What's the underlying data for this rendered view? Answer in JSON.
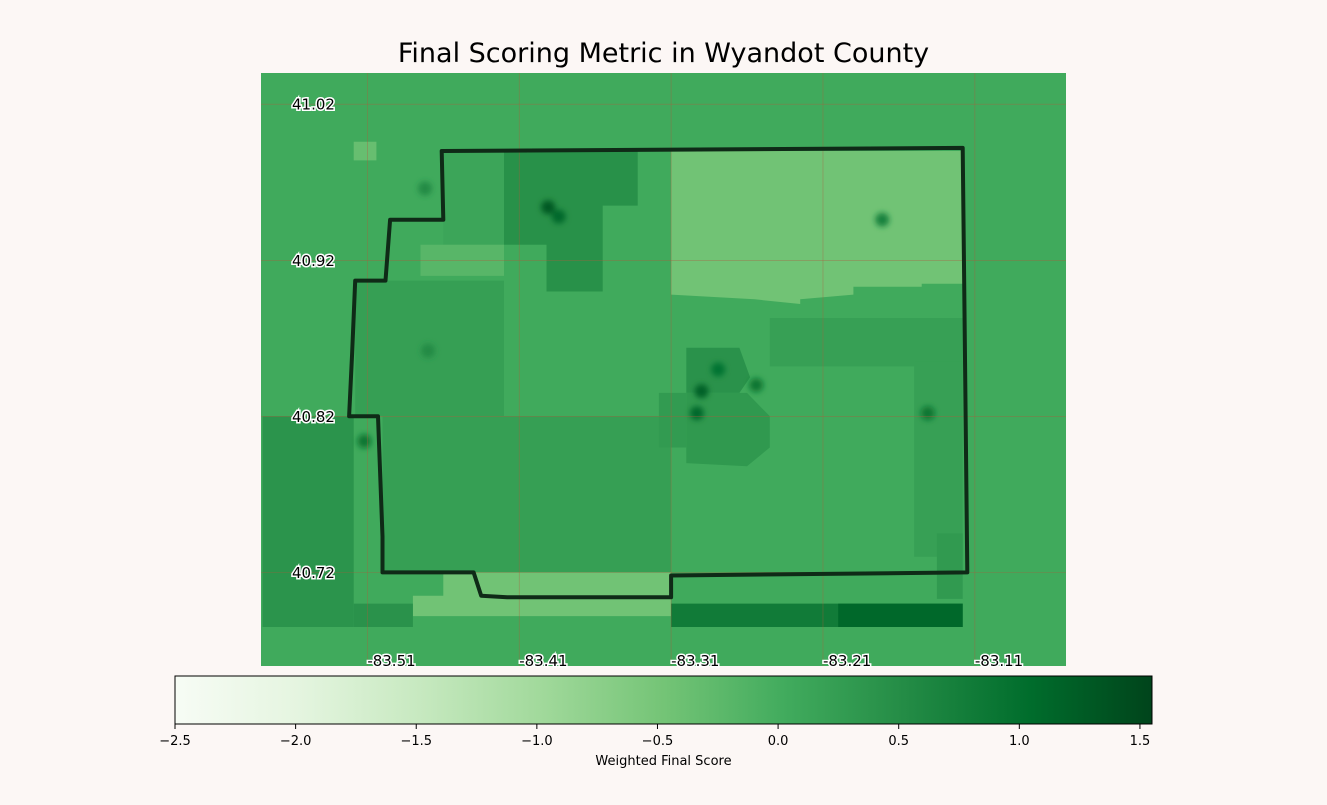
{
  "title": "Final Scoring Metric in Wyandot County",
  "colormap": {
    "name": "Greens",
    "stops": [
      "#f7fcf5",
      "#e5f5e0",
      "#c7e9c0",
      "#a1d99b",
      "#74c476",
      "#41ab5d",
      "#238b45",
      "#006d2c",
      "#00441b"
    ]
  },
  "colors": {
    "background": "#fcf7f5",
    "county_outline": "#0f2a17",
    "gridline": "#b05a3c"
  },
  "map": {
    "lon_range": [
      -83.58,
      -83.05
    ],
    "lat_range": [
      40.66,
      41.04
    ],
    "lat_ticks": [
      {
        "value": 41.02,
        "label": "41.02"
      },
      {
        "value": 40.92,
        "label": "40.92"
      },
      {
        "value": 40.82,
        "label": "40.82"
      },
      {
        "value": 40.72,
        "label": "40.72"
      }
    ],
    "lon_ticks": [
      {
        "value": -83.51,
        "label": "-83.51"
      },
      {
        "value": -83.41,
        "label": "-83.41"
      },
      {
        "value": -83.31,
        "label": "-83.31"
      },
      {
        "value": -83.21,
        "label": "-83.21"
      },
      {
        "value": -83.11,
        "label": "-83.11"
      }
    ],
    "background_score": 0.05,
    "zones": [
      {
        "score": -0.35,
        "poly": [
          [
            -83.519,
            40.996
          ],
          [
            -83.504,
            40.996
          ],
          [
            -83.504,
            40.984
          ],
          [
            -83.519,
            40.984
          ]
        ]
      },
      {
        "score": 0.12,
        "poly": [
          [
            -83.46,
            40.99
          ],
          [
            -83.42,
            40.99
          ],
          [
            -83.42,
            40.93
          ],
          [
            -83.46,
            40.93
          ]
        ]
      },
      {
        "score": 0.25,
        "poly": [
          [
            -83.42,
            40.99
          ],
          [
            -83.38,
            40.99
          ],
          [
            -83.38,
            40.95
          ],
          [
            -83.42,
            40.95
          ]
        ]
      },
      {
        "score": 0.45,
        "poly": [
          [
            -83.42,
            40.99
          ],
          [
            -83.332,
            40.99
          ],
          [
            -83.332,
            40.955
          ],
          [
            -83.355,
            40.955
          ],
          [
            -83.355,
            40.9
          ],
          [
            -83.392,
            40.9
          ],
          [
            -83.392,
            40.93
          ],
          [
            -83.42,
            40.93
          ]
        ]
      },
      {
        "score": -0.45,
        "poly": [
          [
            -83.31,
            40.99
          ],
          [
            -83.118,
            40.99
          ],
          [
            -83.118,
            40.905
          ],
          [
            -83.145,
            40.905
          ],
          [
            -83.145,
            40.903
          ],
          [
            -83.19,
            40.903
          ],
          [
            -83.19,
            40.898
          ],
          [
            -83.225,
            40.895
          ],
          [
            -83.225,
            40.892
          ],
          [
            -83.255,
            40.895
          ],
          [
            -83.31,
            40.898
          ]
        ]
      },
      {
        "score": -0.2,
        "poly": [
          [
            -83.475,
            40.93
          ],
          [
            -83.42,
            40.93
          ],
          [
            -83.42,
            40.91
          ],
          [
            -83.475,
            40.91
          ]
        ]
      },
      {
        "score": 0.22,
        "poly": [
          [
            -83.518,
            40.907
          ],
          [
            -83.42,
            40.907
          ],
          [
            -83.42,
            40.82
          ],
          [
            -83.518,
            40.82
          ]
        ]
      },
      {
        "score": 0.22,
        "poly": [
          [
            -83.42,
            40.82
          ],
          [
            -83.31,
            40.82
          ],
          [
            -83.31,
            40.72
          ],
          [
            -83.42,
            40.72
          ]
        ]
      },
      {
        "score": 0.22,
        "poly": [
          [
            -83.5,
            40.82
          ],
          [
            -83.42,
            40.82
          ],
          [
            -83.42,
            40.72
          ],
          [
            -83.5,
            40.72
          ]
        ]
      },
      {
        "score": -0.45,
        "poly": [
          [
            -83.46,
            40.72
          ],
          [
            -83.31,
            40.72
          ],
          [
            -83.31,
            40.692
          ],
          [
            -83.48,
            40.692
          ],
          [
            -83.48,
            40.705
          ],
          [
            -83.46,
            40.705
          ]
        ]
      },
      {
        "score": 0.2,
        "poly": [
          [
            -83.245,
            40.883
          ],
          [
            -83.118,
            40.883
          ],
          [
            -83.118,
            40.852
          ],
          [
            -83.245,
            40.852
          ]
        ]
      },
      {
        "score": 0.2,
        "poly": [
          [
            -83.15,
            40.855
          ],
          [
            -83.118,
            40.855
          ],
          [
            -83.118,
            40.73
          ],
          [
            -83.15,
            40.73
          ]
        ]
      },
      {
        "score": 0.3,
        "poly": [
          [
            -83.135,
            40.745
          ],
          [
            -83.118,
            40.745
          ],
          [
            -83.118,
            40.703
          ],
          [
            -83.135,
            40.703
          ]
        ]
      },
      {
        "score": 0.42,
        "poly": [
          [
            -83.3,
            40.864
          ],
          [
            -83.265,
            40.864
          ],
          [
            -83.258,
            40.845
          ],
          [
            -83.265,
            40.835
          ],
          [
            -83.3,
            40.835
          ]
        ]
      },
      {
        "score": 0.32,
        "poly": [
          [
            -83.3,
            40.835
          ],
          [
            -83.26,
            40.835
          ],
          [
            -83.245,
            40.82
          ],
          [
            -83.245,
            40.8
          ],
          [
            -83.26,
            40.788
          ],
          [
            -83.3,
            40.79
          ]
        ]
      },
      {
        "score": 0.28,
        "poly": [
          [
            -83.318,
            40.835
          ],
          [
            -83.3,
            40.835
          ],
          [
            -83.3,
            40.8
          ],
          [
            -83.318,
            40.8
          ]
        ]
      },
      {
        "score": 0.8,
        "poly": [
          [
            -83.31,
            40.7
          ],
          [
            -83.118,
            40.7
          ],
          [
            -83.118,
            40.685
          ],
          [
            -83.31,
            40.685
          ]
        ]
      },
      {
        "score": 1.1,
        "poly": [
          [
            -83.2,
            40.7
          ],
          [
            -83.118,
            40.7
          ],
          [
            -83.118,
            40.685
          ],
          [
            -83.2,
            40.685
          ]
        ]
      },
      {
        "score": 0.4,
        "poly": [
          [
            -83.579,
            40.82
          ],
          [
            -83.519,
            40.82
          ],
          [
            -83.519,
            40.685
          ],
          [
            -83.579,
            40.685
          ]
        ]
      },
      {
        "score": 0.42,
        "poly": [
          [
            -83.519,
            40.7
          ],
          [
            -83.48,
            40.7
          ],
          [
            -83.48,
            40.685
          ],
          [
            -83.519,
            40.685
          ]
        ]
      }
    ],
    "hotspots": [
      {
        "lon": -83.391,
        "lat": 40.954,
        "score": 1.3
      },
      {
        "lon": -83.384,
        "lat": 40.948,
        "score": 1.1
      },
      {
        "lon": -83.29,
        "lat": 40.836,
        "score": 1.2
      },
      {
        "lon": -83.293,
        "lat": 40.822,
        "score": 1.1
      },
      {
        "lon": -83.279,
        "lat": 40.85,
        "score": 0.95
      },
      {
        "lon": -83.254,
        "lat": 40.84,
        "score": 0.9
      },
      {
        "lon": -83.141,
        "lat": 40.822,
        "score": 0.9
      },
      {
        "lon": -83.512,
        "lat": 40.804,
        "score": 0.9
      },
      {
        "lon": -83.171,
        "lat": 40.946,
        "score": 0.7
      },
      {
        "lon": -83.472,
        "lat": 40.966,
        "score": 0.55
      },
      {
        "lon": -83.47,
        "lat": 40.862,
        "score": 0.55
      }
    ],
    "county_outline": [
      [
        -83.46,
        40.99
      ],
      [
        -83.118,
        40.992
      ],
      [
        -83.117,
        40.905
      ],
      [
        -83.115,
        40.72
      ],
      [
        -83.31,
        40.718
      ],
      [
        -83.31,
        40.704
      ],
      [
        -83.418,
        40.704
      ],
      [
        -83.435,
        40.705
      ],
      [
        -83.44,
        40.72
      ],
      [
        -83.5,
        40.72
      ],
      [
        -83.5,
        40.743
      ],
      [
        -83.503,
        40.82
      ],
      [
        -83.522,
        40.82
      ],
      [
        -83.52,
        40.86
      ],
      [
        -83.518,
        40.907
      ],
      [
        -83.498,
        40.907
      ],
      [
        -83.495,
        40.946
      ],
      [
        -83.46,
        40.946
      ],
      [
        -83.461,
        40.99
      ]
    ]
  },
  "colorbar": {
    "min": -2.5,
    "max": 1.55,
    "ticks": [
      {
        "value": -2.5,
        "label": "−2.5"
      },
      {
        "value": -2.0,
        "label": "−2.0"
      },
      {
        "value": -1.5,
        "label": "−1.5"
      },
      {
        "value": -1.0,
        "label": "−1.0"
      },
      {
        "value": -0.5,
        "label": "−0.5"
      },
      {
        "value": 0.0,
        "label": "0.0"
      },
      {
        "value": 0.5,
        "label": "0.5"
      },
      {
        "value": 1.0,
        "label": "1.0"
      },
      {
        "value": 1.5,
        "label": "1.5"
      }
    ],
    "label": "Weighted Final Score"
  }
}
